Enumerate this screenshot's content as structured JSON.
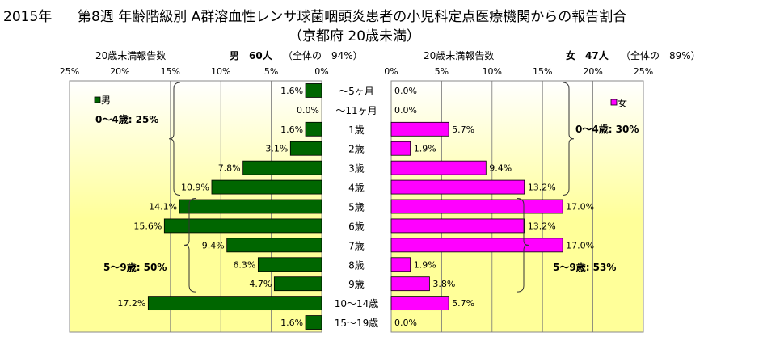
{
  "title": {
    "year": "2015年",
    "main": "第8週 年齢階級別 A群溶血性レンサ球菌咽頭炎患者の小児科定点医療機関からの報告割合",
    "sub": "（京都府 20歳未満）"
  },
  "header_left": {
    "caption": "20歳未満報告数",
    "sex": "男",
    "count": "60人",
    "share": "（全体の　94%）"
  },
  "header_right": {
    "caption": "20歳未満報告数",
    "sex": "女",
    "count": "47人",
    "share": "（全体の　89%）"
  },
  "colors": {
    "male": "#006600",
    "female": "#ff00ff",
    "background_top": "#ffffff",
    "background_mid": "#ffff99"
  },
  "chart_data": {
    "type": "bar",
    "orientation": "horizontal-butterfly",
    "categories": [
      "～5ヶ月",
      "～11ヶ月",
      "1歳",
      "2歳",
      "3歳",
      "4歳",
      "5歳",
      "6歳",
      "7歳",
      "8歳",
      "9歳",
      "10～14歳",
      "15～19歳"
    ],
    "series": [
      {
        "name": "男",
        "values": [
          1.6,
          0.0,
          1.6,
          3.1,
          7.8,
          10.9,
          14.1,
          15.6,
          9.4,
          6.3,
          4.7,
          17.2,
          1.6
        ],
        "labels": [
          "1.6%",
          "0.0%",
          "1.6%",
          "3.1%",
          "7.8%",
          "10.9%",
          "14.1%",
          "15.6%",
          "9.4%",
          "6.3%",
          "4.7%",
          "17.2%",
          "1.6%"
        ]
      },
      {
        "name": "女",
        "values": [
          0.0,
          0.0,
          5.7,
          1.9,
          9.4,
          13.2,
          17.0,
          13.2,
          17.0,
          1.9,
          3.8,
          5.7,
          0.0
        ],
        "labels": [
          "0.0%",
          "0.0%",
          "5.7%",
          "1.9%",
          "9.4%",
          "13.2%",
          "17.0%",
          "13.2%",
          "17.0%",
          "1.9%",
          "3.8%",
          "5.7%",
          "0.0%"
        ]
      }
    ],
    "left_ticks": [
      "25%",
      "20%",
      "15%",
      "10%",
      "5%",
      "0%"
    ],
    "right_ticks": [
      "0%",
      "5%",
      "10%",
      "15%",
      "20%",
      "25%"
    ],
    "xlim": [
      0,
      25
    ],
    "legend": {
      "male": "男",
      "female": "女"
    },
    "annotations": {
      "male_0_4": "0～4歳: 25%",
      "male_5_9": "5～9歳: 50%",
      "female_0_4": "0～4歳: 30%",
      "female_5_9": "5～9歳: 53%"
    }
  }
}
